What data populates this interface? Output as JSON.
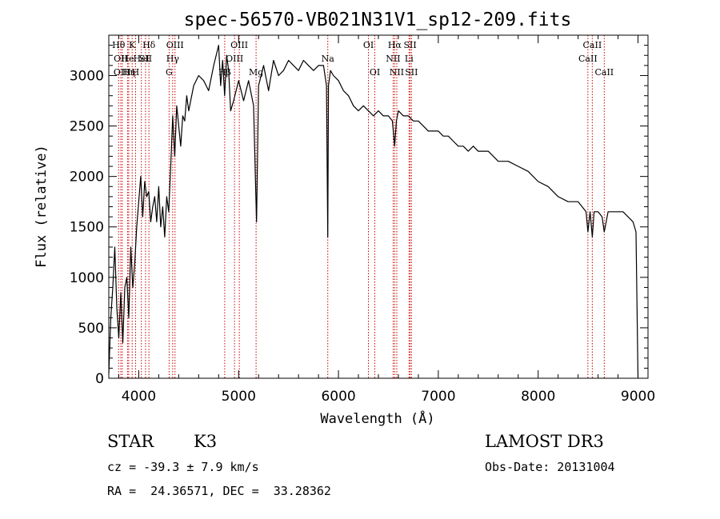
{
  "chart_data": {
    "type": "line",
    "title": "spec-56570-VB021N31V1_sp12-209.fits",
    "xlabel": "Wavelength (Å)",
    "ylabel": "Flux (relative)",
    "xlim": [
      3700,
      9100
    ],
    "ylim": [
      0,
      3400
    ],
    "xticks": [
      4000,
      5000,
      6000,
      7000,
      8000,
      9000
    ],
    "yticks": [
      0,
      500,
      1000,
      1500,
      2000,
      2500,
      3000
    ],
    "series": [
      {
        "name": "flux",
        "x": [
          3700,
          3720,
          3740,
          3760,
          3780,
          3800,
          3820,
          3840,
          3860,
          3880,
          3900,
          3920,
          3940,
          3960,
          3980,
          4000,
          4020,
          4040,
          4060,
          4080,
          4100,
          4120,
          4140,
          4160,
          4180,
          4200,
          4220,
          4240,
          4260,
          4280,
          4300,
          4320,
          4340,
          4360,
          4380,
          4400,
          4420,
          4440,
          4460,
          4480,
          4500,
          4550,
          4600,
          4650,
          4700,
          4750,
          4800,
          4820,
          4840,
          4860,
          4880,
          4900,
          4920,
          4950,
          5000,
          5050,
          5100,
          5150,
          5170,
          5180,
          5200,
          5250,
          5300,
          5350,
          5400,
          5450,
          5500,
          5550,
          5600,
          5650,
          5700,
          5750,
          5800,
          5850,
          5880,
          5893,
          5900,
          5920,
          5950,
          6000,
          6050,
          6100,
          6150,
          6200,
          6250,
          6300,
          6350,
          6400,
          6450,
          6500,
          6540,
          6563,
          6580,
          6600,
          6650,
          6700,
          6750,
          6800,
          6850,
          6900,
          6950,
          7000,
          7050,
          7100,
          7150,
          7200,
          7250,
          7300,
          7350,
          7400,
          7450,
          7500,
          7600,
          7700,
          7800,
          7900,
          8000,
          8100,
          8200,
          8300,
          8400,
          8480,
          8498,
          8520,
          8542,
          8560,
          8600,
          8640,
          8662,
          8700,
          8750,
          8800,
          8850,
          8900,
          8950,
          8980,
          9000
        ],
        "y": [
          50,
          600,
          900,
          1300,
          700,
          400,
          850,
          350,
          900,
          1000,
          600,
          1300,
          900,
          1150,
          1500,
          1750,
          2000,
          1600,
          1950,
          1800,
          1850,
          1550,
          1700,
          1800,
          1550,
          1900,
          1500,
          1700,
          1400,
          1800,
          1650,
          2100,
          2600,
          2200,
          2700,
          2500,
          2300,
          2600,
          2550,
          2800,
          2650,
          2900,
          3000,
          2950,
          2850,
          3100,
          3300,
          2900,
          3150,
          2800,
          3200,
          3050,
          2650,
          2750,
          2950,
          2750,
          2950,
          2700,
          1900,
          1550,
          2900,
          3100,
          2850,
          3150,
          3000,
          3050,
          3150,
          3100,
          3050,
          3150,
          3100,
          3050,
          3100,
          3100,
          2900,
          1400,
          2900,
          3050,
          3000,
          2950,
          2850,
          2800,
          2700,
          2650,
          2700,
          2650,
          2600,
          2650,
          2600,
          2600,
          2550,
          2300,
          2550,
          2650,
          2600,
          2600,
          2550,
          2550,
          2500,
          2450,
          2450,
          2450,
          2400,
          2400,
          2350,
          2300,
          2300,
          2250,
          2300,
          2250,
          2250,
          2250,
          2150,
          2150,
          2100,
          2050,
          1950,
          1900,
          1800,
          1750,
          1750,
          1650,
          1450,
          1650,
          1400,
          1650,
          1650,
          1600,
          1450,
          1650,
          1650,
          1650,
          1650,
          1600,
          1550,
          1450,
          0
        ]
      }
    ],
    "lines": [
      {
        "wl": 3798,
        "label": "Hθ",
        "row": 0
      },
      {
        "wl": 3820,
        "label": "OII",
        "row": 1
      },
      {
        "wl": 3835,
        "label": "OIII",
        "row": 2
      },
      {
        "wl": 3889,
        "label": "He",
        "row": 1
      },
      {
        "wl": 3900,
        "label": "Hη",
        "row": 2
      },
      {
        "wl": 3934,
        "label": "K",
        "row": 0
      },
      {
        "wl": 3968,
        "label": "H",
        "row": 2
      },
      {
        "wl": 4026,
        "label": "HeI",
        "row": 1
      },
      {
        "wl": 4102,
        "label": "Hδ",
        "row": 0
      },
      {
        "wl": 4068,
        "label": "SII",
        "row": 1
      },
      {
        "wl": 4304,
        "label": "G",
        "row": 2
      },
      {
        "wl": 4340,
        "label": "Hγ",
        "row": 1
      },
      {
        "wl": 4363,
        "label": "OIII",
        "row": 0
      },
      {
        "wl": 4861,
        "label": "Hβ",
        "row": 2
      },
      {
        "wl": 4959,
        "label": "OIII",
        "row": 1
      },
      {
        "wl": 5007,
        "label": "OIII",
        "row": 0
      },
      {
        "wl": 5175,
        "label": "Mg",
        "row": 2
      },
      {
        "wl": 5893,
        "label": "Na",
        "row": 1
      },
      {
        "wl": 6300,
        "label": "OI",
        "row": 0
      },
      {
        "wl": 6364,
        "label": "OI",
        "row": 2
      },
      {
        "wl": 6548,
        "label": "NII",
        "row": 1
      },
      {
        "wl": 6563,
        "label": "Hα",
        "row": 0
      },
      {
        "wl": 6584,
        "label": "NII",
        "row": 2
      },
      {
        "wl": 6707,
        "label": "Li",
        "row": 1
      },
      {
        "wl": 6717,
        "label": "SII",
        "row": 0
      },
      {
        "wl": 6731,
        "label": "SII",
        "row": 2
      },
      {
        "wl": 8498,
        "label": "CaII",
        "row": 1
      },
      {
        "wl": 8542,
        "label": "CaII",
        "row": 0
      },
      {
        "wl": 8662,
        "label": "CaII",
        "row": 2
      }
    ]
  },
  "info": {
    "object_type": "STAR",
    "subclass": "K3",
    "survey": "LAMOST DR3",
    "cz": "cz = -39.3 ± 7.9 km/s",
    "obs_date": "Obs-Date: 20131004",
    "coords": "RA =  24.36571, DEC =  33.28362"
  },
  "colors": {
    "line_marker": "#cc0000",
    "spectrum": "#000000"
  }
}
